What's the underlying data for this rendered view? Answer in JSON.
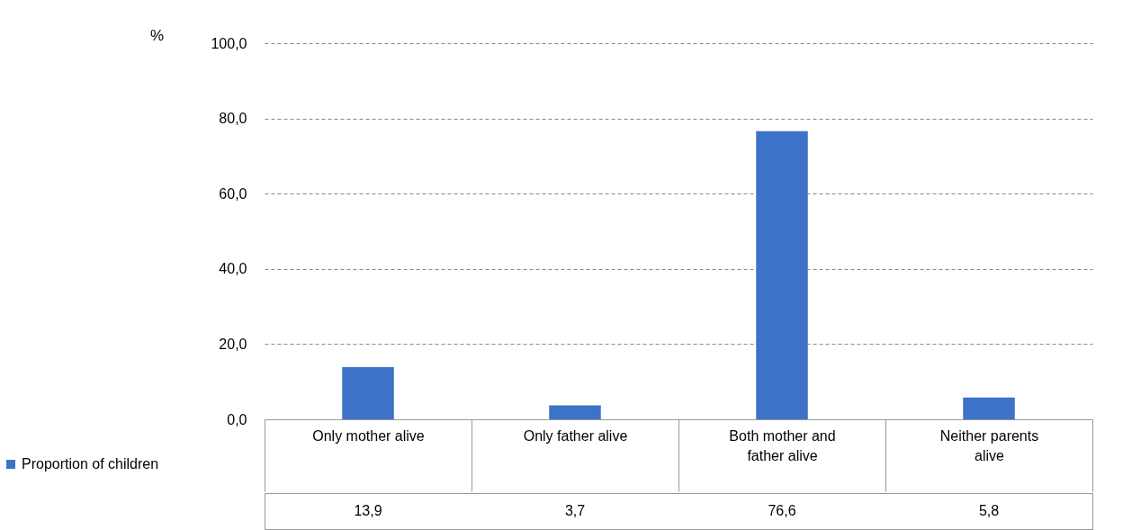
{
  "chart_data": {
    "type": "bar",
    "ylabel": "%",
    "categories": [
      "Only mother alive",
      "Only father alive",
      "Both mother and father alive",
      "Neither parents alive"
    ],
    "series": [
      {
        "name": "Proportion of children",
        "color": "#3c73c8",
        "values": [
          13.9,
          3.7,
          76.6,
          5.8
        ],
        "value_labels": [
          "13,9",
          "3,7",
          "76,6",
          "5,8"
        ]
      }
    ],
    "ylim": [
      0,
      100
    ],
    "yticks": [
      {
        "value": 0,
        "label": "0,0"
      },
      {
        "value": 20,
        "label": "20,0"
      },
      {
        "value": 40,
        "label": "40,0"
      },
      {
        "value": 60,
        "label": "60,0"
      },
      {
        "value": 80,
        "label": "80,0"
      },
      {
        "value": 100,
        "label": "100,0"
      }
    ],
    "grid": "y",
    "legend": "bottom left"
  }
}
